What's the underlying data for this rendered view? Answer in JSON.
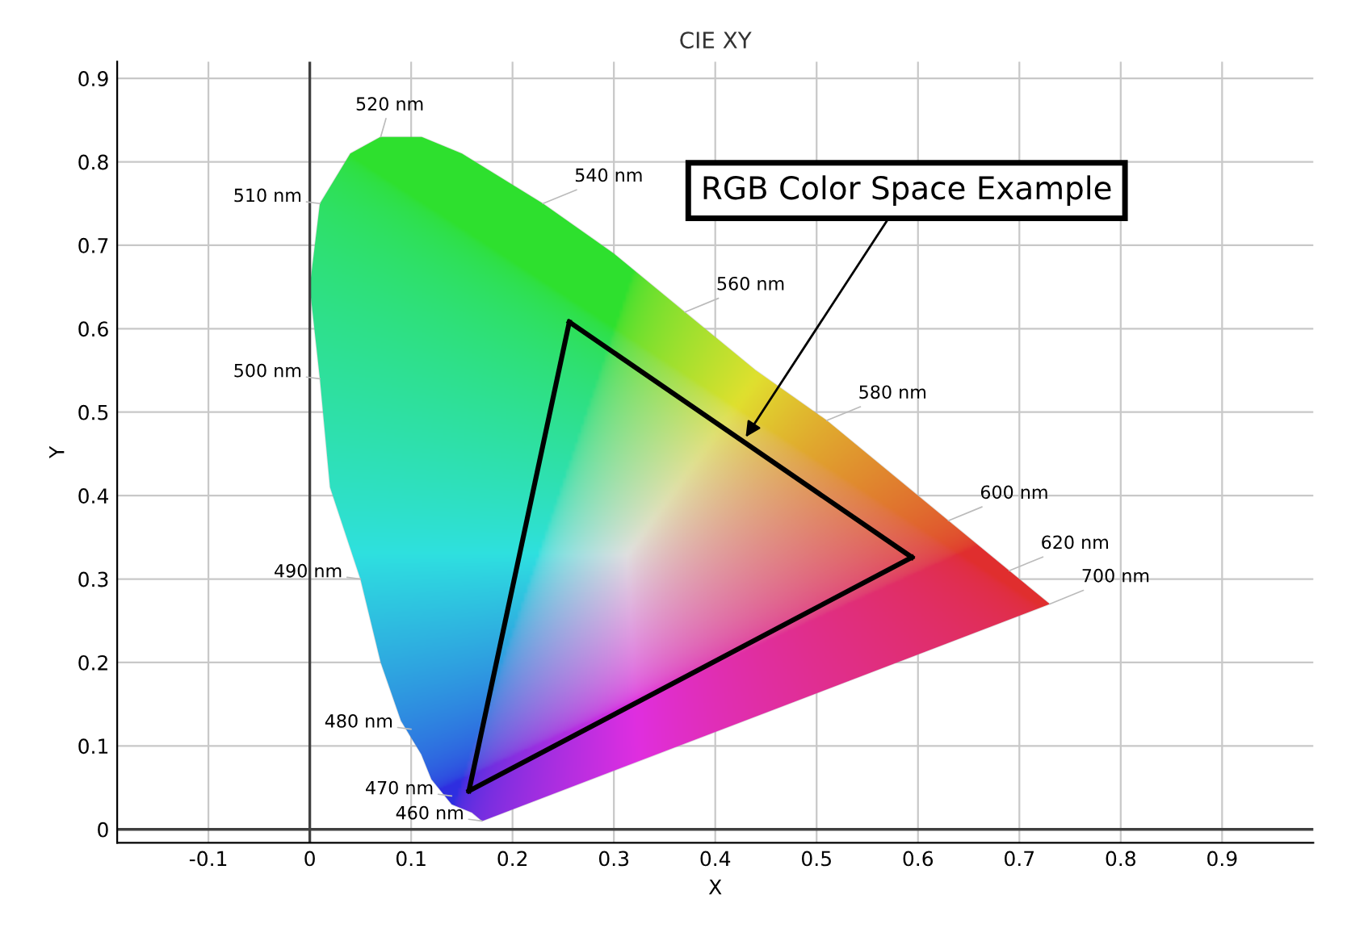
{
  "chart_data": {
    "type": "line",
    "title": "CIE XY",
    "xlabel": "X",
    "ylabel": "Y",
    "xlim": [
      -0.19,
      0.99
    ],
    "ylim": [
      -0.016,
      0.92
    ],
    "xticks": [
      -0.1,
      0,
      0.1,
      0.2,
      0.3,
      0.4,
      0.5,
      0.6,
      0.7,
      0.8,
      0.9
    ],
    "yticks": [
      0,
      0.1,
      0.2,
      0.3,
      0.4,
      0.5,
      0.6,
      0.7,
      0.8,
      0.9
    ],
    "grid": true,
    "marker": "none",
    "line_style": "solid",
    "series": [
      {
        "type": "area",
        "color": "#9a9a9a",
        "x": [
          0.17,
          0.16,
          0.14,
          0.12,
          0.11,
          0.09,
          0.07,
          0.05,
          0.02,
          0.01,
          0.0,
          0.01,
          0.04,
          0.07,
          0.11,
          0.15,
          0.23,
          0.3,
          0.37,
          0.44,
          0.51,
          0.58,
          0.63,
          0.69,
          0.73,
          0.17
        ],
        "values": [
          0.01,
          0.02,
          0.03,
          0.06,
          0.09,
          0.13,
          0.2,
          0.3,
          0.41,
          0.54,
          0.65,
          0.75,
          0.81,
          0.83,
          0.83,
          0.81,
          0.75,
          0.69,
          0.62,
          0.55,
          0.49,
          0.42,
          0.37,
          0.31,
          0.27,
          0.01
        ]
      },
      {
        "color": "#000000",
        "x": [
          0.157,
          0.256
        ],
        "values": [
          0.046,
          0.608
        ]
      },
      {
        "color": "#000000",
        "x": [
          0.256,
          0.594
        ],
        "values": [
          0.608,
          0.326
        ]
      },
      {
        "color": "#000000",
        "x": [
          0.157,
          0.594
        ],
        "values": [
          0.046,
          0.326
        ]
      }
    ],
    "annotations": [
      {
        "text": "460 nm",
        "x": 0.17,
        "y": 0.01
      },
      {
        "text": "470 nm",
        "x": 0.14,
        "y": 0.04
      },
      {
        "text": "480 nm",
        "x": 0.1,
        "y": 0.12
      },
      {
        "text": "490 nm",
        "x": 0.05,
        "y": 0.3
      },
      {
        "text": "500 nm",
        "x": 0.01,
        "y": 0.54
      },
      {
        "text": "510 nm",
        "x": 0.01,
        "y": 0.75
      },
      {
        "text": "520 nm",
        "x": 0.07,
        "y": 0.83
      },
      {
        "text": "540 nm",
        "x": 0.23,
        "y": 0.75
      },
      {
        "text": "560 nm",
        "x": 0.37,
        "y": 0.62
      },
      {
        "text": "580 nm",
        "x": 0.51,
        "y": 0.49
      },
      {
        "text": "600 nm",
        "x": 0.63,
        "y": 0.37
      },
      {
        "text": "620 nm",
        "x": 0.69,
        "y": 0.31
      },
      {
        "text": "700 nm",
        "x": 0.73,
        "y": 0.27
      },
      {
        "text": "RGB Color Space Example",
        "x": 0.43,
        "y": 0.47
      }
    ]
  }
}
